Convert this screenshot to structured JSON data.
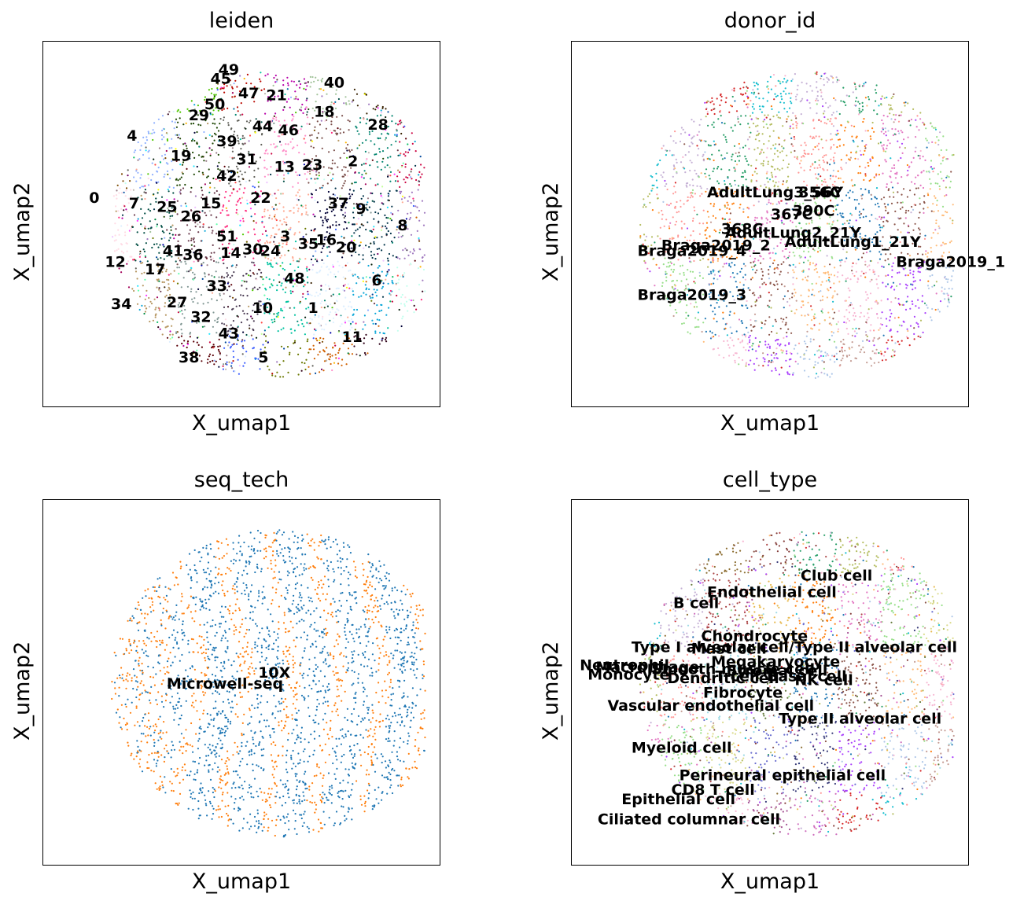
{
  "chart_data": [
    {
      "type": "scatter",
      "title": "leiden",
      "xlabel": "X_umap1",
      "ylabel": "X_umap2",
      "grid": false,
      "legend": "on data",
      "colors": [
        "#ffff00",
        "#1ce6ff",
        "#ff34ff",
        "#ff4a46",
        "#008941",
        "#006fa6",
        "#a30059",
        "#ffdbe5",
        "#7a4900",
        "#0000a6",
        "#63ffac",
        "#b79762",
        "#004d43",
        "#8fb0ff",
        "#997d87",
        "#5a0007",
        "#809693",
        "#6a3a4c",
        "#1b4400",
        "#4fc601",
        "#3b5dff",
        "#4a3b53",
        "#ff2f80",
        "#61615a",
        "#ba0900",
        "#6b7900",
        "#00c2a0",
        "#ffaa92",
        "#ff90c9",
        "#b903aa",
        "#d16100",
        "#ddefff",
        "#000035",
        "#7b4f4b",
        "#a1c299",
        "#300018",
        "#0aa6d8",
        "#013349",
        "#00846f",
        "#372101",
        "#ffb500",
        "#c2ffed",
        "#a079bf",
        "#cc0744",
        "#c0b9b2",
        "#c2ff99",
        "#001e09",
        "#00489c",
        "#6f0062",
        "#0cbd66",
        "#eec3ff"
      ],
      "labels": [
        {
          "text": "0",
          "x": 0.115,
          "y": 0.56
        },
        {
          "text": "1",
          "x": 0.665,
          "y": 0.26
        },
        {
          "text": "2",
          "x": 0.765,
          "y": 0.66
        },
        {
          "text": "3",
          "x": 0.595,
          "y": 0.455
        },
        {
          "text": "4",
          "x": 0.21,
          "y": 0.73
        },
        {
          "text": "5",
          "x": 0.54,
          "y": 0.125
        },
        {
          "text": "6",
          "x": 0.825,
          "y": 0.335
        },
        {
          "text": "7",
          "x": 0.215,
          "y": 0.545
        },
        {
          "text": "8",
          "x": 0.89,
          "y": 0.485
        },
        {
          "text": "9",
          "x": 0.785,
          "y": 0.53
        },
        {
          "text": "10",
          "x": 0.525,
          "y": 0.26
        },
        {
          "text": "11",
          "x": 0.75,
          "y": 0.18
        },
        {
          "text": "12",
          "x": 0.155,
          "y": 0.385
        },
        {
          "text": "13",
          "x": 0.58,
          "y": 0.645
        },
        {
          "text": "14",
          "x": 0.445,
          "y": 0.41
        },
        {
          "text": "15",
          "x": 0.395,
          "y": 0.545
        },
        {
          "text": "16",
          "x": 0.685,
          "y": 0.445
        },
        {
          "text": "17",
          "x": 0.255,
          "y": 0.365
        },
        {
          "text": "18",
          "x": 0.68,
          "y": 0.795
        },
        {
          "text": "19",
          "x": 0.32,
          "y": 0.675
        },
        {
          "text": "20",
          "x": 0.735,
          "y": 0.425
        },
        {
          "text": "21",
          "x": 0.56,
          "y": 0.84
        },
        {
          "text": "22",
          "x": 0.52,
          "y": 0.56
        },
        {
          "text": "23",
          "x": 0.65,
          "y": 0.65
        },
        {
          "text": "24",
          "x": 0.545,
          "y": 0.415
        },
        {
          "text": "25",
          "x": 0.285,
          "y": 0.535
        },
        {
          "text": "26",
          "x": 0.345,
          "y": 0.51
        },
        {
          "text": "27",
          "x": 0.31,
          "y": 0.275
        },
        {
          "text": "28",
          "x": 0.815,
          "y": 0.76
        },
        {
          "text": "29",
          "x": 0.365,
          "y": 0.785
        },
        {
          "text": "30",
          "x": 0.5,
          "y": 0.42
        },
        {
          "text": "31",
          "x": 0.485,
          "y": 0.665
        },
        {
          "text": "32",
          "x": 0.37,
          "y": 0.235
        },
        {
          "text": "33",
          "x": 0.41,
          "y": 0.32
        },
        {
          "text": "34",
          "x": 0.17,
          "y": 0.27
        },
        {
          "text": "35",
          "x": 0.64,
          "y": 0.435
        },
        {
          "text": "36",
          "x": 0.35,
          "y": 0.405
        },
        {
          "text": "37",
          "x": 0.715,
          "y": 0.545
        },
        {
          "text": "38",
          "x": 0.34,
          "y": 0.125
        },
        {
          "text": "39",
          "x": 0.435,
          "y": 0.715
        },
        {
          "text": "40",
          "x": 0.705,
          "y": 0.875
        },
        {
          "text": "41",
          "x": 0.3,
          "y": 0.415
        },
        {
          "text": "42",
          "x": 0.435,
          "y": 0.62
        },
        {
          "text": "43",
          "x": 0.44,
          "y": 0.19
        },
        {
          "text": "44",
          "x": 0.525,
          "y": 0.755
        },
        {
          "text": "45",
          "x": 0.42,
          "y": 0.885
        },
        {
          "text": "46",
          "x": 0.59,
          "y": 0.745
        },
        {
          "text": "47",
          "x": 0.49,
          "y": 0.845
        },
        {
          "text": "48",
          "x": 0.605,
          "y": 0.34
        },
        {
          "text": "49",
          "x": 0.44,
          "y": 0.91
        },
        {
          "text": "50",
          "x": 0.405,
          "y": 0.815
        },
        {
          "text": "51",
          "x": 0.435,
          "y": 0.455
        }
      ]
    },
    {
      "type": "scatter",
      "title": "donor_id",
      "xlabel": "X_umap1",
      "ylabel": "X_umap2",
      "grid": false,
      "legend": "on data",
      "colors": [
        "#1f77b4",
        "#ff7f0e",
        "#279e68",
        "#d62728",
        "#aa40fc",
        "#8c564b",
        "#e377c2",
        "#b5bd61",
        "#17becf",
        "#aec7e8",
        "#ffbb78",
        "#98df8a",
        "#ff9896",
        "#c5b0d5",
        "#c49c94",
        "#f7b6d2"
      ],
      "labels": [
        {
          "text": "AdultLung3_56Y",
          "x": 0.34,
          "y": 0.575
        },
        {
          "text": "AdultLung2_21Y",
          "x": 0.385,
          "y": 0.465
        },
        {
          "text": "AdultLung1_21Y",
          "x": 0.535,
          "y": 0.44
        },
        {
          "text": "367C",
          "x": 0.5,
          "y": 0.515
        },
        {
          "text": "368C",
          "x": 0.375,
          "y": 0.475
        },
        {
          "text": "356C",
          "x": 0.57,
          "y": 0.575
        },
        {
          "text": "390C",
          "x": 0.555,
          "y": 0.525
        },
        {
          "text": "Braga2019_1",
          "x": 0.815,
          "y": 0.385
        },
        {
          "text": "Braga2019_2",
          "x": 0.225,
          "y": 0.43
        },
        {
          "text": "Braga2019_3",
          "x": 0.165,
          "y": 0.295
        },
        {
          "text": "Braga2019_4",
          "x": 0.165,
          "y": 0.415
        }
      ]
    },
    {
      "type": "scatter",
      "title": "seq_tech",
      "xlabel": "X_umap1",
      "ylabel": "X_umap2",
      "grid": false,
      "legend": "on data",
      "colors": [
        "#1f77b4",
        "#ff7f0e"
      ],
      "labels": [
        {
          "text": "10X",
          "x": 0.54,
          "y": 0.515
        },
        {
          "text": "Microwell-seq",
          "x": 0.31,
          "y": 0.485
        }
      ]
    },
    {
      "type": "scatter",
      "title": "cell_type",
      "xlabel": "X_umap1",
      "ylabel": "X_umap2",
      "grid": false,
      "legend": "on data",
      "colors": [
        "#1f77b4",
        "#ff7f0e",
        "#279e68",
        "#d62728",
        "#aa40fc",
        "#8c564b",
        "#e377c2",
        "#b5bd61",
        "#17becf",
        "#aec7e8",
        "#ffbb78",
        "#98df8a",
        "#ff9896",
        "#c5b0d5",
        "#c49c94",
        "#f7b6d2",
        "#dbdb8d",
        "#9edae5",
        "#ad494a",
        "#8c6d31",
        "#a55194",
        "#6b6ecf",
        "#637939",
        "#e7ba52",
        "#843c39",
        "#ce6dbd",
        "#393b79"
      ],
      "labels": [
        {
          "text": "Club cell",
          "x": 0.575,
          "y": 0.78
        },
        {
          "text": "Endothelial cell",
          "x": 0.34,
          "y": 0.735
        },
        {
          "text": "B cell",
          "x": 0.255,
          "y": 0.705
        },
        {
          "text": "Chondrocyte",
          "x": 0.325,
          "y": 0.615
        },
        {
          "text": "Type I alveolar cell/Type II alveolar cell",
          "x": 0.15,
          "y": 0.585
        },
        {
          "text": "Mast cell",
          "x": 0.3,
          "y": 0.58
        },
        {
          "text": "Megakaryocyte",
          "x": 0.35,
          "y": 0.545
        },
        {
          "text": "Neutrophil",
          "x": 0.02,
          "y": 0.535
        },
        {
          "text": "Macrophage",
          "x": 0.06,
          "y": 0.53
        },
        {
          "text": "Monocyte",
          "x": 0.04,
          "y": 0.51
        },
        {
          "text": "Smooth muscle cell",
          "x": 0.2,
          "y": 0.525
        },
        {
          "text": "Dendritic cell",
          "x": 0.24,
          "y": 0.5
        },
        {
          "text": "T cell",
          "x": 0.36,
          "y": 0.505
        },
        {
          "text": "Stromal cell",
          "x": 0.39,
          "y": 0.52
        },
        {
          "text": "Basal cell",
          "x": 0.49,
          "y": 0.505
        },
        {
          "text": "NK cell",
          "x": 0.56,
          "y": 0.495
        },
        {
          "text": "Fibrocyte",
          "x": 0.33,
          "y": 0.46
        },
        {
          "text": "Vascular endothelial cell",
          "x": 0.09,
          "y": 0.425
        },
        {
          "text": "Type II alveolar cell",
          "x": 0.52,
          "y": 0.39
        },
        {
          "text": "Myeloid cell",
          "x": 0.15,
          "y": 0.31
        },
        {
          "text": "Perineural epithelial cell",
          "x": 0.27,
          "y": 0.235
        },
        {
          "text": "CD8 T cell",
          "x": 0.25,
          "y": 0.195
        },
        {
          "text": "Epithelial cell",
          "x": 0.125,
          "y": 0.17
        },
        {
          "text": "Ciliated columnar cell",
          "x": 0.065,
          "y": 0.115
        }
      ]
    }
  ]
}
